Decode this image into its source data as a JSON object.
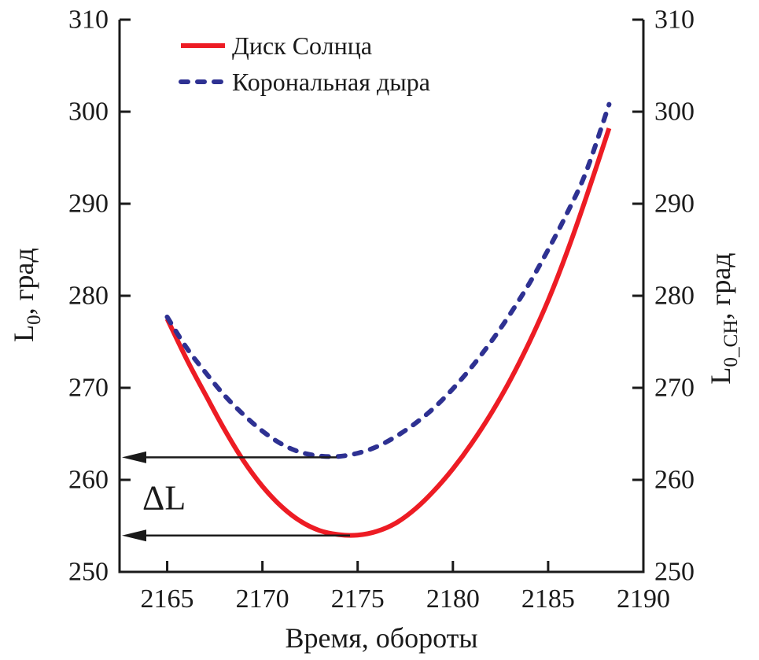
{
  "figure": {
    "description": "Line chart of carrington longitude vs time"
  },
  "chart_data": {
    "type": "line",
    "title": "",
    "xlabel": "Время, обороты",
    "ylabel_left": {
      "base": "L",
      "sub": "0",
      "rest": ", град"
    },
    "ylabel_right": {
      "base": "L",
      "sub": "0_CH",
      "rest": ", град"
    },
    "xlim": [
      2162.5,
      2190
    ],
    "ylim": [
      250,
      310
    ],
    "xticks": [
      2165,
      2170,
      2175,
      2180,
      2185,
      2190
    ],
    "yticks_left": [
      250,
      260,
      270,
      280,
      290,
      300,
      310
    ],
    "yticks_right": [
      250,
      260,
      270,
      280,
      290,
      300,
      310
    ],
    "grid": false,
    "legend_position": "top-left-inside",
    "series": [
      {
        "name": "Диск Солнца",
        "color": "#ED1C24",
        "style": "solid",
        "min_point": [
          2174.6,
          254.0
        ],
        "points": [
          [
            2165.0,
            277.5
          ],
          [
            2166,
            273.2
          ],
          [
            2167,
            269.3
          ],
          [
            2168,
            265.5
          ],
          [
            2169,
            262.1
          ],
          [
            2170,
            259.3
          ],
          [
            2171,
            257.1
          ],
          [
            2172,
            255.5
          ],
          [
            2173,
            254.5
          ],
          [
            2174,
            254.05
          ],
          [
            2175,
            254.0
          ],
          [
            2176,
            254.4
          ],
          [
            2177,
            255.3
          ],
          [
            2178,
            256.8
          ],
          [
            2179,
            258.8
          ],
          [
            2180,
            261.2
          ],
          [
            2181,
            264.0
          ],
          [
            2182,
            267.2
          ],
          [
            2183,
            270.8
          ],
          [
            2184,
            274.9
          ],
          [
            2185,
            279.5
          ],
          [
            2186,
            284.8
          ],
          [
            2187,
            290.7
          ],
          [
            2188.2,
            298.2
          ]
        ]
      },
      {
        "name": "Корональная дыра",
        "color": "#2E3192",
        "style": "dashed",
        "min_point": [
          2173.5,
          262.6
        ],
        "points": [
          [
            2165.0,
            277.7
          ],
          [
            2166,
            274.4
          ],
          [
            2167,
            271.7
          ],
          [
            2168,
            269.2
          ],
          [
            2169,
            267.1
          ],
          [
            2170,
            265.3
          ],
          [
            2171,
            263.9
          ],
          [
            2172,
            263.0
          ],
          [
            2173,
            262.6
          ],
          [
            2174,
            262.55
          ],
          [
            2175,
            262.9
          ],
          [
            2176,
            263.6
          ],
          [
            2177,
            264.7
          ],
          [
            2178,
            266.1
          ],
          [
            2179,
            267.8
          ],
          [
            2180,
            269.9
          ],
          [
            2181,
            272.3
          ],
          [
            2182,
            275.0
          ],
          [
            2183,
            278.0
          ],
          [
            2184,
            281.3
          ],
          [
            2185,
            285.0
          ],
          [
            2186,
            289.0
          ],
          [
            2187,
            293.5
          ],
          [
            2188.2,
            300.8
          ]
        ]
      }
    ],
    "annotation": {
      "label": "ΔL",
      "label_pos": {
        "x": 2163.7,
        "y": 256.8
      },
      "arrows": [
        {
          "y": 262.45,
          "x_end": 2173.9
        },
        {
          "y": 253.95,
          "x_end": 2174.6
        }
      ]
    },
    "colors": {
      "axis": "#1a1a1a",
      "text": "#1a1a1a"
    }
  }
}
